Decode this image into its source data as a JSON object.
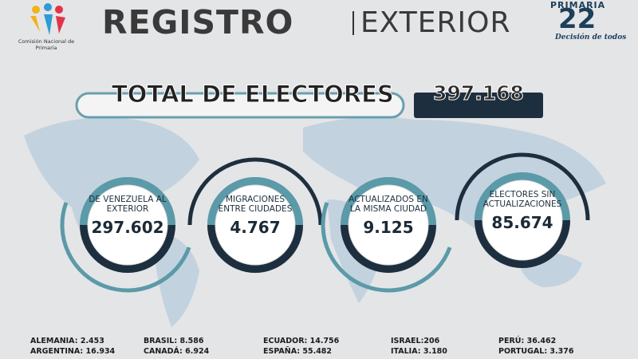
{
  "header": {
    "org": "Comisión Nacional de Primaria",
    "title_main": "REGISTRO",
    "title_sub": "EXTERIOR",
    "logo_top": "PRIMARIA",
    "logo_number": "22",
    "logo_slogan": "Decisión de todos"
  },
  "total": {
    "label": "TOTAL DE ELECTORES",
    "value": "397.168"
  },
  "rings": [
    {
      "label": "DE VENEZUELA AL EXTERIOR",
      "value": "297.602"
    },
    {
      "label": "MIGRACIONES ENTRE CIUDADES",
      "value": "4.767"
    },
    {
      "label": "ACTUALIZADOS EN LA MISMA CIUDAD",
      "value": "9.125"
    },
    {
      "label": "ELECTORES SIN ACTUALIZACIONES",
      "value": "85.674"
    }
  ],
  "countries": [
    [
      "ALEMANIA: 2.453",
      "ARGENTINA: 16.934"
    ],
    [
      "BRASIL: 8.586",
      "CANADÁ: 6.924"
    ],
    [
      "ECUADOR: 14.756",
      "ESPAÑA: 55.482"
    ],
    [
      "ISRAEL:206",
      "ITALIA: 3.180"
    ],
    [
      "PERÚ: 36.462",
      "PORTUGAL: 3.376"
    ]
  ]
}
